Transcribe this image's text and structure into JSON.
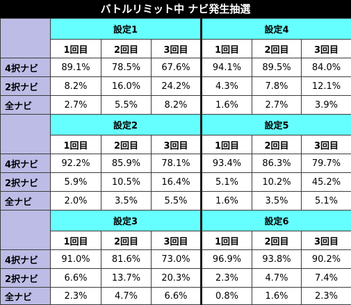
{
  "title": "バトルリミット中 ナビ発生抽選",
  "columns": [
    "1回目",
    "2回目",
    "3回目"
  ],
  "row_labels": [
    "4択ナビ",
    "2択ナビ",
    "全ナビ"
  ],
  "blocks": [
    {
      "left": {
        "setting": "設定1",
        "rows": [
          [
            "89.1%",
            "78.5%",
            "67.6%"
          ],
          [
            "8.2%",
            "16.0%",
            "24.2%"
          ],
          [
            "2.7%",
            "5.5%",
            "8.2%"
          ]
        ]
      },
      "right": {
        "setting": "設定4",
        "rows": [
          [
            "94.1%",
            "89.5%",
            "84.0%"
          ],
          [
            "4.3%",
            "7.8%",
            "12.1%"
          ],
          [
            "1.6%",
            "2.7%",
            "3.9%"
          ]
        ]
      }
    },
    {
      "left": {
        "setting": "設定2",
        "rows": [
          [
            "92.2%",
            "85.9%",
            "78.1%"
          ],
          [
            "5.9%",
            "10.5%",
            "16.4%"
          ],
          [
            "2.0%",
            "3.5%",
            "5.5%"
          ]
        ]
      },
      "right": {
        "setting": "設定5",
        "rows": [
          [
            "93.4%",
            "86.3%",
            "79.7%"
          ],
          [
            "5.1%",
            "10.2%",
            "45.2%"
          ],
          [
            "1.6%",
            "3.5%",
            "5.1%"
          ]
        ]
      }
    },
    {
      "left": {
        "setting": "設定3",
        "rows": [
          [
            "91.0%",
            "81.6%",
            "73.0%"
          ],
          [
            "6.6%",
            "13.7%",
            "20.3%"
          ],
          [
            "2.3%",
            "4.7%",
            "6.6%"
          ]
        ]
      },
      "right": {
        "setting": "設定6",
        "rows": [
          [
            "96.9%",
            "93.8%",
            "90.2%"
          ],
          [
            "2.3%",
            "4.7%",
            "7.4%"
          ],
          [
            "0.8%",
            "1.6%",
            "2.3%"
          ]
        ]
      }
    }
  ]
}
